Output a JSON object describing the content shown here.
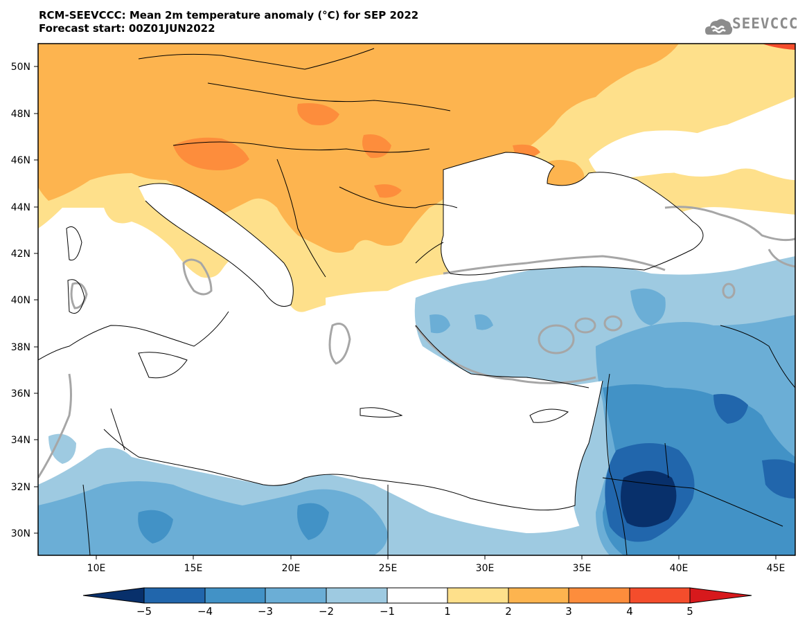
{
  "title": {
    "line1": "RCM-SEEVCCC: Mean 2m temperature anomaly (°C) for SEP 2022",
    "line2": "Forecast start: 00Z01JUN2022"
  },
  "logo": {
    "text": "SEEVCCC",
    "icon": "cloud-icon"
  },
  "map": {
    "projection": "lat-lon",
    "lon_range": [
      7,
      46
    ],
    "lat_range": [
      29,
      51
    ],
    "lat_ticks": [
      "50N",
      "48N",
      "46N",
      "44N",
      "42N",
      "40N",
      "38N",
      "36N",
      "34N",
      "32N",
      "30N"
    ],
    "lon_ticks": [
      "10E",
      "15E",
      "20E",
      "25E",
      "30E",
      "35E",
      "40E",
      "45E"
    ],
    "contour_label": "0"
  },
  "colorbar": {
    "levels": [
      "−5",
      "−4",
      "−3",
      "−2",
      "−1",
      "1",
      "2",
      "3",
      "4",
      "5"
    ],
    "colors": [
      "#08306b",
      "#2166ac",
      "#4292c6",
      "#6baed6",
      "#9ecae1",
      "#ffffff",
      "#fee08b",
      "#fdb44f",
      "#fd8d3c",
      "#f44d2c",
      "#d7191c"
    ],
    "extend": "both"
  }
}
